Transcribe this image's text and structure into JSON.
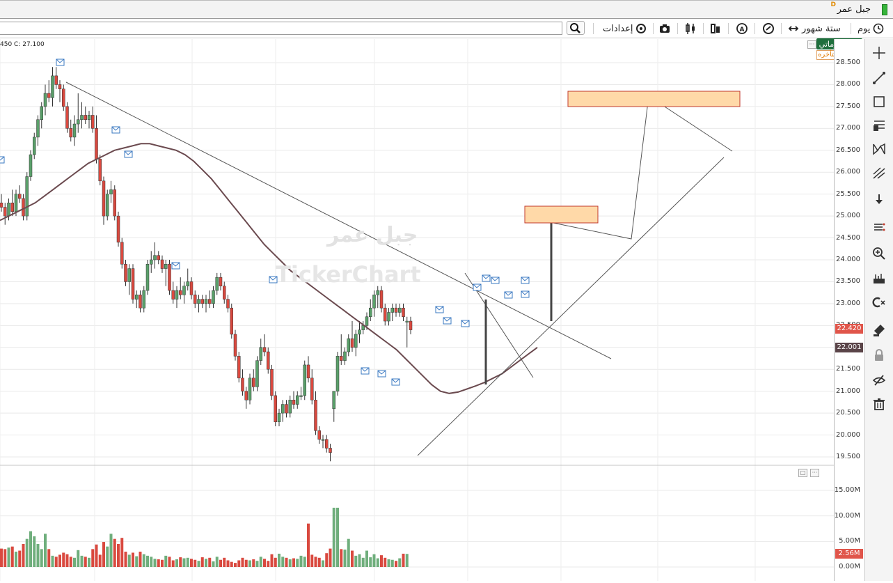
{
  "window": {
    "title": "جبل عمر",
    "badge": "D"
  },
  "toolbar": {
    "search_value": "",
    "settings_label": "إعدادات",
    "period_label": "ستة شهور",
    "interval_label": "يوم"
  },
  "status": {
    "text": "450  C:  27.100"
  },
  "indicator": {
    "name": "رسوماتي",
    "delay_note": "البيانات متأخره"
  },
  "watermark": {
    "name": "جبل عمر",
    "brand": "TickerChart"
  },
  "price_axis": {
    "labels": [
      "28.500",
      "28.000",
      "27.500",
      "27.000",
      "26.500",
      "26.000",
      "25.500",
      "25.000",
      "24.500",
      "24.000",
      "23.500",
      "23.000",
      "22.500",
      "22.000",
      "21.500",
      "21.000",
      "20.500",
      "20.000",
      "19.500"
    ],
    "last_price": "22.420",
    "ma_value": "22.001"
  },
  "volume_axis": {
    "labels": [
      "15.00M",
      "10.00M",
      "5.00M",
      "0.00M"
    ],
    "last_volume": "2.56M"
  },
  "colors": {
    "up": "#5aa06a",
    "down": "#d9493f",
    "ma": "#6b4a4f",
    "zone": "#ffd9a8",
    "zone_border": "#c0392b",
    "last_price": "#e0554a",
    "ma_tag": "#5a4448"
  },
  "chart_data": {
    "type": "candlestick",
    "ylim": [
      19.3,
      28.8
    ],
    "candles": [
      [
        25.3,
        25.5,
        25.1,
        25.2
      ],
      [
        25.2,
        25.3,
        24.8,
        25.0
      ],
      [
        25.0,
        25.4,
        24.9,
        25.3
      ],
      [
        25.3,
        25.6,
        25.0,
        25.1
      ],
      [
        25.1,
        25.6,
        25.0,
        25.5
      ],
      [
        25.5,
        25.7,
        25.3,
        25.4
      ],
      [
        25.4,
        25.5,
        24.9,
        25.0
      ],
      [
        25.0,
        26.0,
        24.9,
        25.9
      ],
      [
        25.9,
        26.5,
        25.8,
        26.4
      ],
      [
        26.4,
        26.9,
        26.3,
        26.8
      ],
      [
        26.8,
        27.3,
        26.6,
        27.2
      ],
      [
        27.2,
        27.6,
        27.0,
        27.5
      ],
      [
        27.5,
        28.0,
        27.3,
        27.8
      ],
      [
        27.8,
        28.1,
        27.6,
        27.7
      ],
      [
        27.7,
        28.4,
        27.5,
        28.2
      ],
      [
        28.2,
        28.4,
        27.9,
        28.0
      ],
      [
        28.0,
        28.1,
        27.6,
        27.9
      ],
      [
        27.9,
        28.0,
        27.4,
        27.5
      ],
      [
        27.5,
        27.6,
        26.9,
        27.0
      ],
      [
        27.0,
        27.2,
        26.7,
        26.8
      ],
      [
        26.8,
        27.3,
        26.6,
        27.1
      ],
      [
        27.1,
        27.8,
        26.9,
        27.2
      ],
      [
        27.2,
        27.6,
        27.0,
        27.3
      ],
      [
        27.3,
        27.5,
        27.1,
        27.2
      ],
      [
        27.2,
        27.4,
        27.0,
        27.3
      ],
      [
        27.3,
        27.5,
        26.9,
        27.0
      ],
      [
        27.0,
        27.3,
        26.2,
        26.3
      ],
      [
        26.3,
        26.4,
        25.7,
        25.8
      ],
      [
        25.8,
        25.9,
        24.8,
        25.0
      ],
      [
        25.0,
        25.6,
        24.9,
        25.5
      ],
      [
        25.5,
        25.8,
        25.3,
        25.6
      ],
      [
        25.6,
        25.7,
        24.9,
        25.0
      ],
      [
        25.0,
        25.1,
        24.3,
        24.4
      ],
      [
        24.4,
        24.5,
        23.8,
        23.9
      ],
      [
        23.9,
        24.0,
        23.4,
        23.5
      ],
      [
        23.5,
        23.9,
        23.2,
        23.8
      ],
      [
        23.8,
        23.9,
        23.0,
        23.1
      ],
      [
        23.1,
        23.3,
        22.9,
        23.2
      ],
      [
        23.2,
        23.3,
        22.8,
        22.9
      ],
      [
        22.9,
        23.4,
        22.8,
        23.3
      ],
      [
        23.3,
        24.0,
        23.2,
        23.9
      ],
      [
        23.9,
        24.2,
        23.7,
        24.0
      ],
      [
        24.0,
        24.4,
        23.8,
        24.1
      ],
      [
        24.1,
        24.2,
        23.9,
        24.0
      ],
      [
        24.0,
        24.1,
        23.7,
        23.8
      ],
      [
        23.8,
        24.0,
        23.4,
        23.9
      ],
      [
        23.9,
        24.0,
        23.2,
        23.3
      ],
      [
        23.3,
        23.5,
        23.0,
        23.1
      ],
      [
        23.1,
        23.4,
        22.9,
        23.3
      ],
      [
        23.3,
        23.6,
        23.1,
        23.2
      ],
      [
        23.2,
        23.5,
        23.0,
        23.4
      ],
      [
        23.4,
        23.8,
        23.3,
        23.5
      ],
      [
        23.5,
        23.6,
        23.1,
        23.2
      ],
      [
        23.2,
        23.3,
        22.9,
        23.0
      ],
      [
        23.0,
        23.2,
        22.8,
        23.1
      ],
      [
        23.1,
        23.2,
        22.9,
        23.0
      ],
      [
        23.0,
        23.2,
        22.8,
        23.1
      ],
      [
        23.1,
        23.3,
        22.9,
        23.0
      ],
      [
        23.0,
        23.4,
        22.9,
        23.3
      ],
      [
        23.3,
        23.7,
        23.2,
        23.6
      ],
      [
        23.6,
        23.7,
        23.3,
        23.4
      ],
      [
        23.4,
        23.5,
        23.0,
        23.1
      ],
      [
        23.1,
        23.2,
        22.8,
        22.9
      ],
      [
        22.9,
        23.0,
        22.2,
        22.3
      ],
      [
        22.3,
        22.4,
        21.7,
        21.8
      ],
      [
        21.8,
        21.9,
        21.2,
        21.3
      ],
      [
        21.3,
        21.5,
        20.9,
        21.0
      ],
      [
        21.0,
        21.1,
        20.6,
        20.8
      ],
      [
        20.8,
        21.4,
        20.7,
        21.3
      ],
      [
        21.3,
        21.5,
        21.0,
        21.1
      ],
      [
        21.1,
        21.8,
        21.0,
        21.7
      ],
      [
        21.7,
        22.2,
        21.6,
        22.0
      ],
      [
        22.0,
        22.3,
        21.8,
        21.9
      ],
      [
        21.9,
        22.0,
        21.4,
        21.5
      ],
      [
        21.5,
        21.6,
        20.8,
        20.9
      ],
      [
        20.9,
        21.0,
        20.2,
        20.3
      ],
      [
        20.3,
        20.6,
        20.2,
        20.5
      ],
      [
        20.5,
        20.8,
        20.3,
        20.7
      ],
      [
        20.7,
        20.8,
        20.4,
        20.5
      ],
      [
        20.5,
        20.9,
        20.4,
        20.8
      ],
      [
        20.8,
        21.0,
        20.6,
        20.7
      ],
      [
        20.7,
        21.0,
        20.6,
        20.9
      ],
      [
        20.9,
        21.1,
        20.8,
        20.9
      ],
      [
        20.9,
        21.7,
        20.8,
        21.6
      ],
      [
        21.6,
        21.8,
        21.2,
        21.3
      ],
      [
        21.3,
        21.5,
        20.7,
        20.8
      ],
      [
        20.8,
        21.0,
        20.0,
        20.1
      ],
      [
        20.1,
        20.2,
        19.8,
        19.9
      ],
      [
        19.9,
        20.0,
        19.7,
        19.9
      ],
      [
        19.9,
        20.0,
        19.6,
        19.7
      ],
      [
        19.7,
        19.8,
        19.4,
        19.6
      ],
      [
        20.6,
        21.0,
        20.3,
        21.0
      ],
      [
        21.0,
        21.9,
        20.9,
        21.8
      ],
      [
        21.8,
        22.3,
        21.6,
        21.7
      ],
      [
        21.7,
        22.0,
        21.6,
        21.9
      ],
      [
        21.9,
        22.3,
        21.8,
        22.2
      ],
      [
        22.2,
        22.6,
        21.9,
        22.0
      ],
      [
        22.0,
        22.4,
        21.8,
        22.3
      ],
      [
        22.3,
        22.6,
        22.1,
        22.4
      ],
      [
        22.4,
        22.6,
        22.3,
        22.5
      ],
      [
        22.5,
        22.8,
        22.4,
        22.7
      ],
      [
        22.7,
        23.1,
        22.6,
        22.9
      ],
      [
        22.9,
        23.3,
        22.7,
        23.2
      ],
      [
        23.2,
        23.4,
        22.9,
        23.3
      ],
      [
        23.3,
        23.4,
        22.8,
        22.9
      ],
      [
        22.9,
        23.0,
        22.5,
        22.6
      ],
      [
        22.6,
        22.9,
        22.5,
        22.8
      ],
      [
        22.8,
        23.0,
        22.6,
        22.9
      ],
      [
        22.9,
        23.0,
        22.7,
        22.8
      ],
      [
        22.8,
        23.0,
        22.7,
        22.9
      ],
      [
        22.9,
        23.0,
        22.6,
        22.7
      ],
      [
        22.6,
        22.7,
        22.0,
        22.6
      ],
      [
        22.6,
        22.7,
        22.3,
        22.4
      ]
    ],
    "ma": [
      24.9,
      25.0,
      25.1,
      25.2,
      25.3,
      25.45,
      25.6,
      25.75,
      25.9,
      26.05,
      26.2,
      26.3,
      26.4,
      26.5,
      26.55,
      26.6,
      26.65,
      26.65,
      26.6,
      26.55,
      26.5,
      26.4,
      26.25,
      26.05,
      25.85,
      25.6,
      25.35,
      25.1,
      24.85,
      24.6,
      24.35,
      24.15,
      23.95,
      23.75,
      23.6,
      23.45,
      23.3,
      23.15,
      23.0,
      22.85,
      22.7,
      22.55,
      22.4,
      22.25,
      22.1,
      21.95,
      21.75,
      21.55,
      21.35,
      21.15,
      21.0,
      20.95,
      20.98,
      21.05,
      21.12,
      21.2,
      21.3,
      21.4,
      21.55,
      21.7,
      21.85,
      22.0
    ],
    "volume": [
      3.6,
      3.5,
      3.8,
      4.0,
      3.0,
      3.2,
      4.5,
      5.5,
      7.0,
      6.0,
      4.5,
      3.5,
      6.5,
      3.5,
      2.2,
      2.0,
      2.4,
      2.8,
      2.5,
      2.0,
      1.8,
      3.3,
      2.2,
      2.0,
      1.8,
      3.5,
      4.4,
      2.4,
      4.9,
      4.0,
      6.5,
      5.5,
      4.5,
      5.7,
      3.0,
      2.4,
      2.8,
      2.1,
      3.0,
      2.5,
      2.2,
      2.0,
      1.6,
      1.5,
      1.4,
      2.2,
      2.0,
      1.3,
      1.5,
      1.9,
      1.7,
      1.8,
      1.6,
      1.4,
      1.2,
      1.9,
      1.6,
      1.8,
      1.1,
      2.0,
      1.4,
      1.8,
      1.3,
      1.0,
      0.8,
      1.3,
      1.8,
      1.4,
      1.3,
      1.5,
      1.2,
      2.0,
      1.6,
      1.2,
      2.5,
      1.8,
      2.6,
      2.0,
      1.8,
      1.5,
      1.7,
      1.6,
      2.2,
      2.0,
      8.5,
      2.4,
      2.0,
      1.8,
      1.3,
      2.7,
      3.6,
      11.6,
      11.6,
      3.5,
      3.4,
      5.5,
      3.2,
      2.2,
      2.5,
      1.8,
      3.2,
      1.9,
      2.5,
      1.7,
      2.3,
      1.8,
      1.5,
      1.4,
      1.2,
      1.7,
      2.6,
      2.56
    ]
  }
}
